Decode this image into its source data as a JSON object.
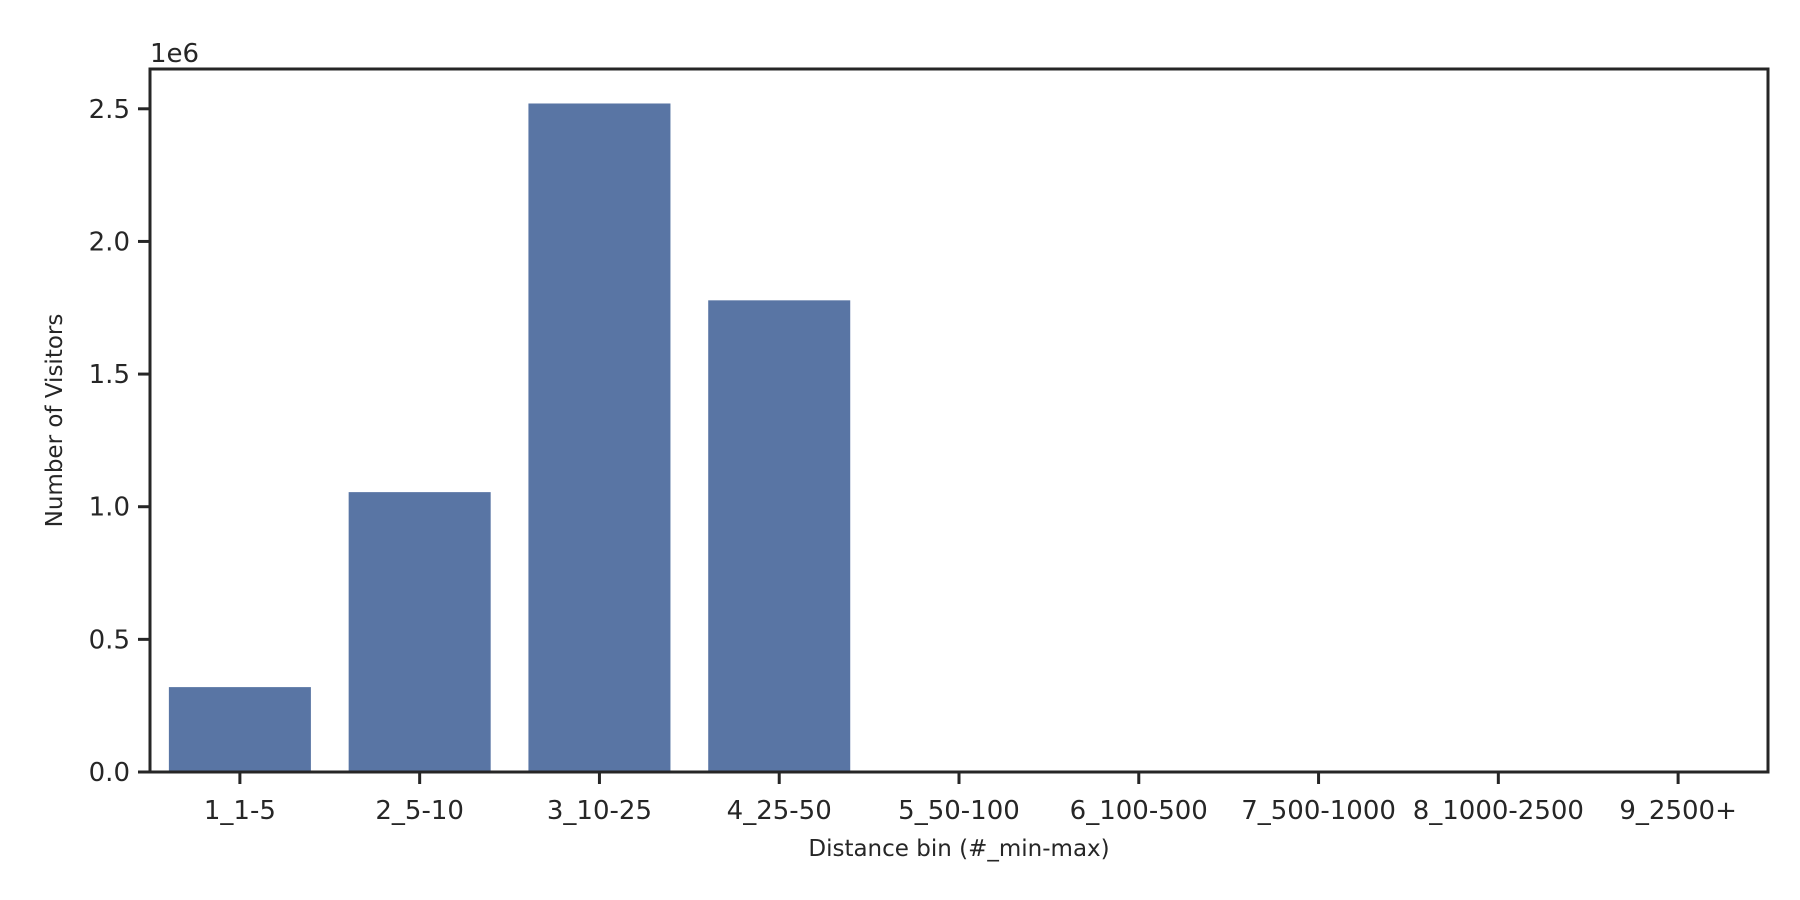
{
  "chart_data": {
    "type": "bar",
    "categories": [
      "1_1-5",
      "2_5-10",
      "3_10-25",
      "4_25-50",
      "5_50-100",
      "6_100-500",
      "7_500-1000",
      "8_1000-2500",
      "9_2500+"
    ],
    "values": [
      320000,
      1055000,
      2520000,
      1778000,
      0,
      0,
      0,
      0,
      0
    ],
    "xlabel": "Distance bin (#_min-max)",
    "ylabel": "Number of Visitors",
    "y_offset_label": "1e6",
    "ylim": [
      0,
      2650000
    ],
    "yticks": [
      0,
      500000,
      1000000,
      1500000,
      2000000,
      2500000
    ],
    "ytick_labels": [
      "0.0",
      "0.5",
      "1.0",
      "1.5",
      "2.0",
      "2.5"
    ],
    "grid": false,
    "legend": "none",
    "colors": {
      "bar": "#5975a4",
      "axis": "#262626"
    }
  }
}
